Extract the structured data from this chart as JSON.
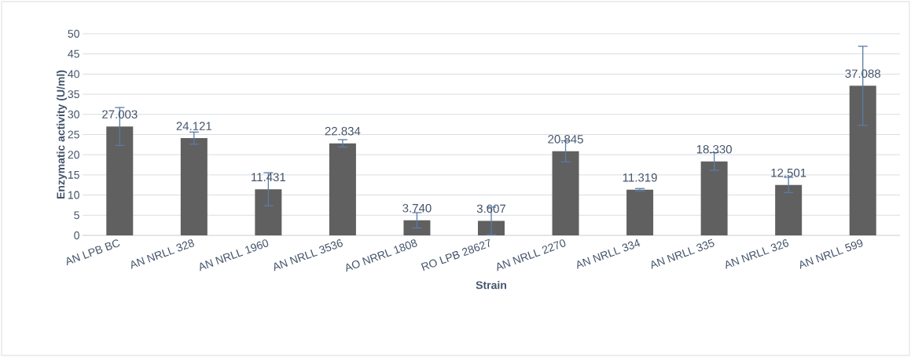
{
  "chart_data": {
    "type": "bar",
    "xlabel": "Strain",
    "ylabel": "Enzymatic activity (U/ml)",
    "categories": [
      "AN LPB BC",
      "AN NRLL 328",
      "AN NRLL 1960",
      "AN NRLL 3536",
      "AO NRRL 1808",
      "RO LPB 28627",
      "AN NRLL 2270",
      "AN NRLL 334",
      "AN NRLL 335",
      "AN NRLL 326",
      "AN NRLL 599"
    ],
    "values": [
      27.003,
      24.121,
      11.431,
      22.834,
      3.74,
      3.607,
      20.845,
      11.319,
      18.33,
      12.501,
      37.088
    ],
    "value_labels": [
      "27.003",
      "24.121",
      "11.431",
      "22.834",
      "3.740",
      "3.607",
      "20.845",
      "11.319",
      "18.330",
      "12.501",
      "37.088"
    ],
    "errors": [
      4.7,
      1.5,
      4.1,
      0.9,
      1.9,
      3.4,
      2.6,
      0.3,
      2.2,
      1.9,
      9.8
    ],
    "color": "#606060",
    "ylim": [
      0,
      50
    ],
    "yticks": [
      0,
      5,
      10,
      15,
      20,
      25,
      30,
      35,
      40,
      45,
      50
    ],
    "grid": "y"
  }
}
